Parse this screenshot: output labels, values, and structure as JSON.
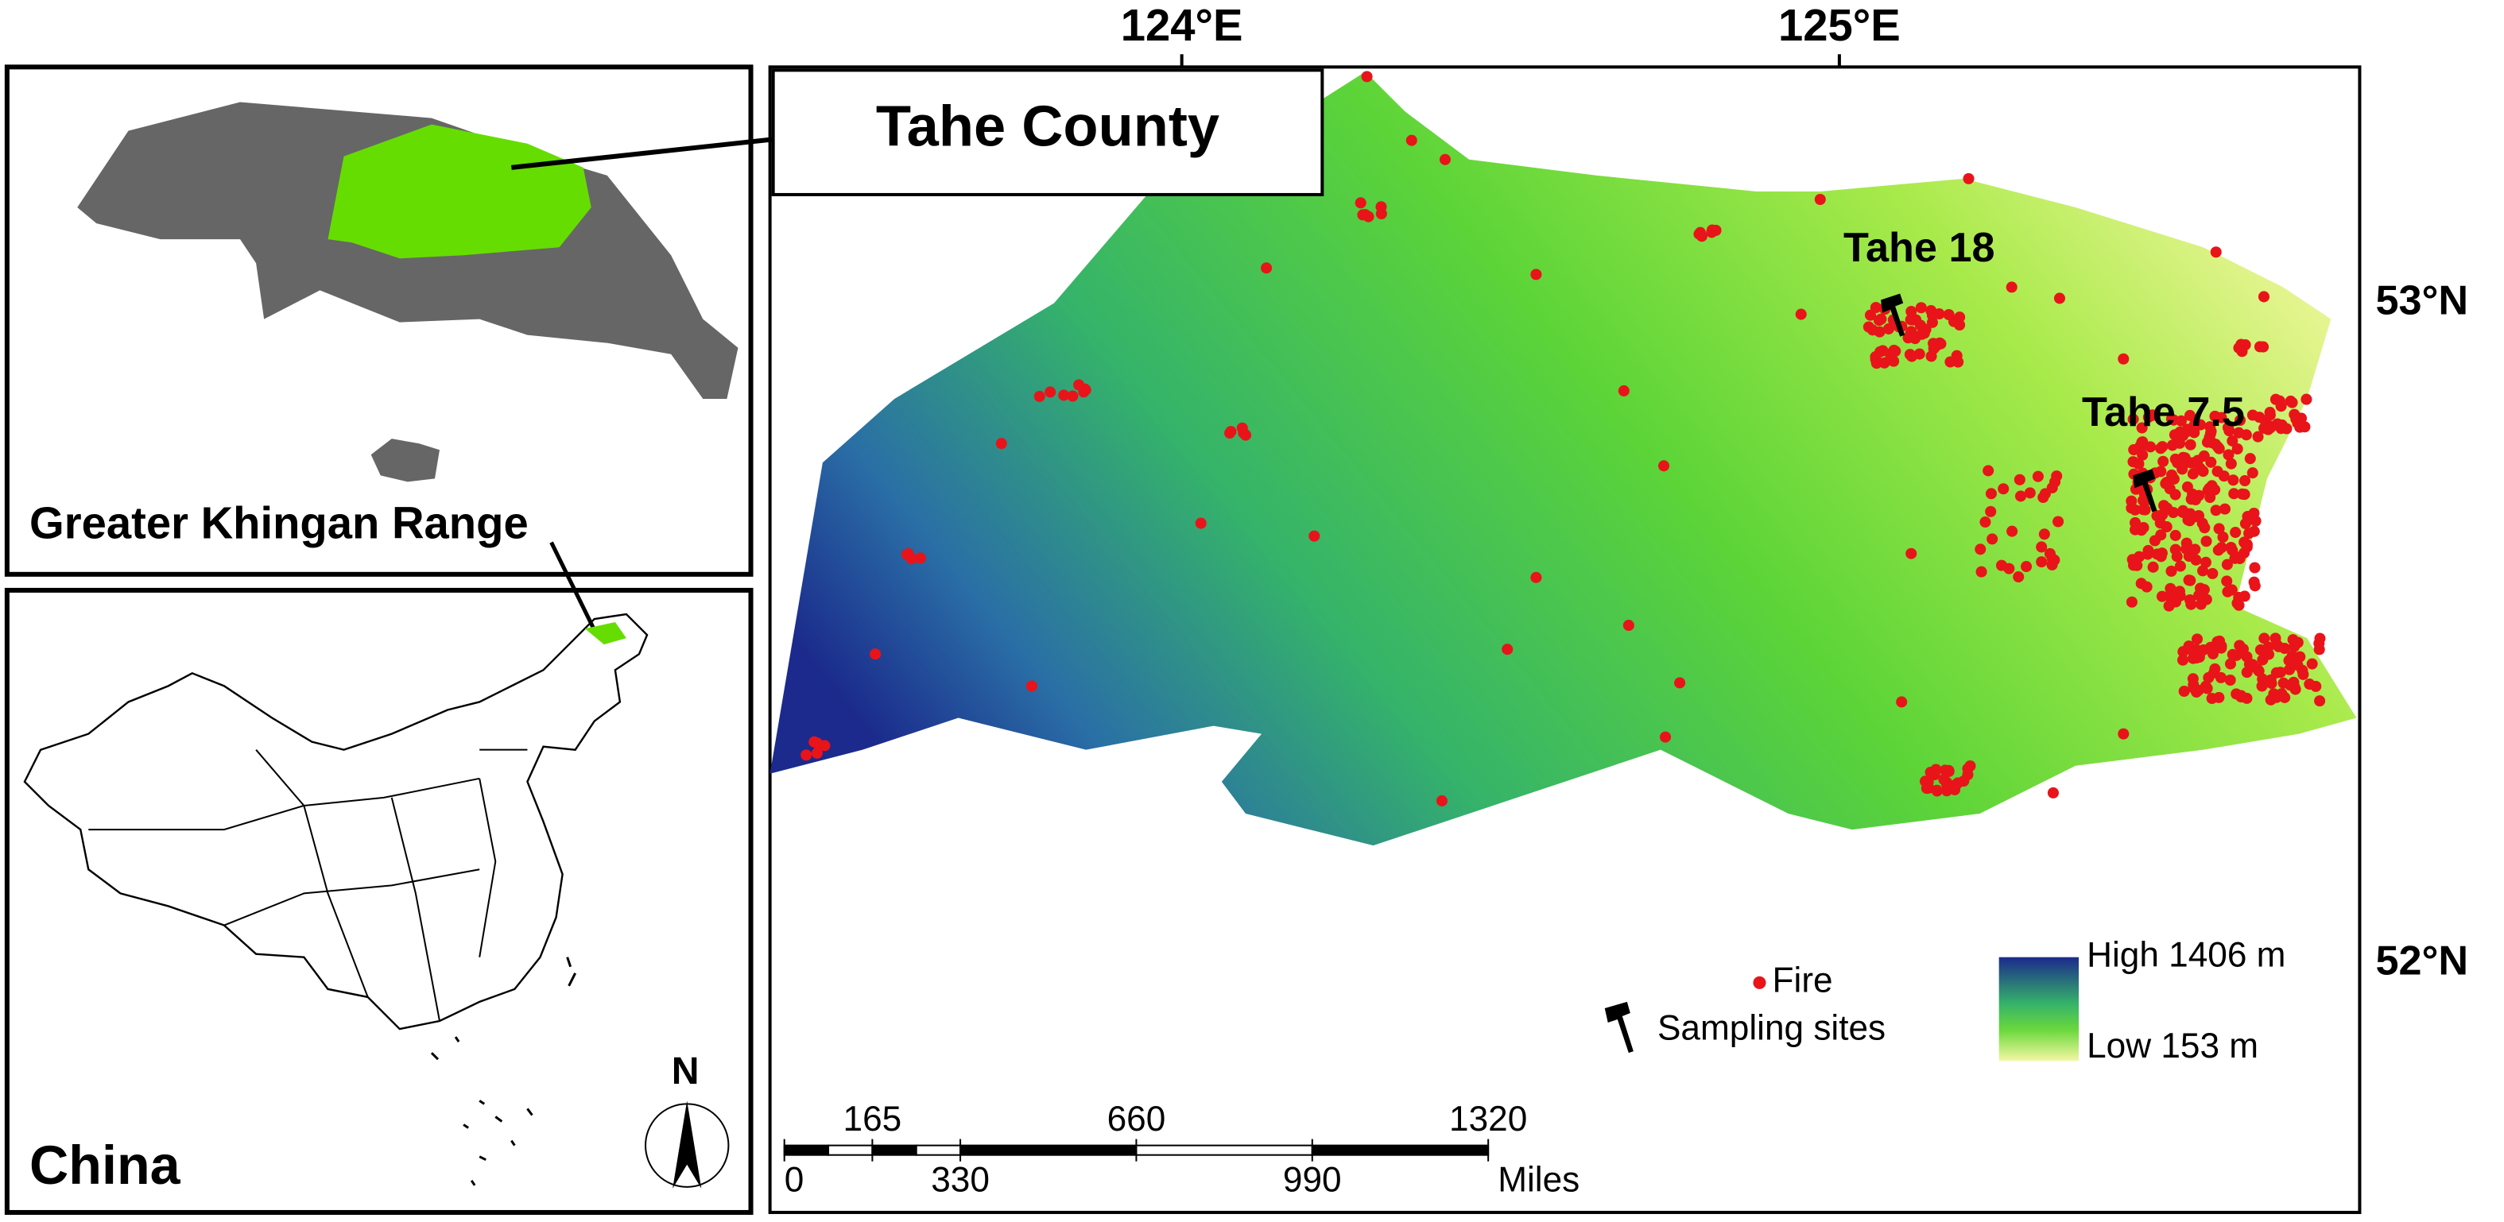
{
  "inset_top": {
    "title_box": "Tahe County",
    "label": "Greater Khingan Range"
  },
  "inset_bottom": {
    "label": "China",
    "north": "N"
  },
  "main_map": {
    "x_labels": [
      "124°E",
      "125°E"
    ],
    "y_labels": [
      "53°N",
      "52°N"
    ],
    "sites": [
      "Tahe 18",
      "Tahe 7.5"
    ],
    "legend": {
      "fire": "Fire",
      "sampling": "Sampling sites",
      "high": "High 1406 m",
      "low": "Low 153 m"
    },
    "scale_bar": {
      "ticks": [
        0,
        165,
        330,
        660,
        990,
        1320
      ],
      "unit": "Miles"
    }
  }
}
